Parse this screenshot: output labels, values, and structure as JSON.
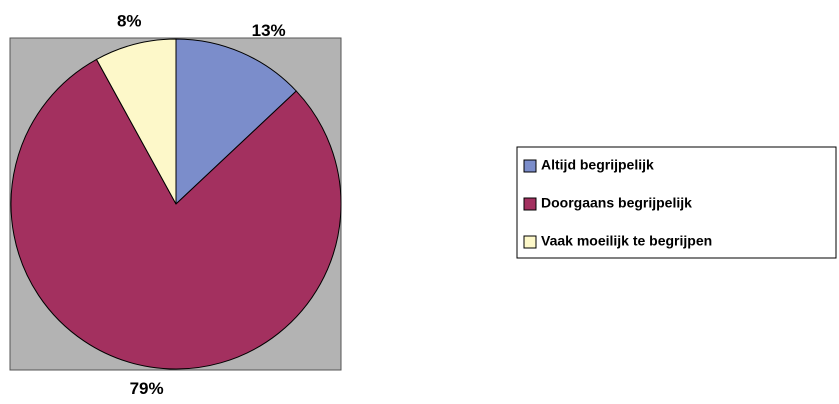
{
  "chart_data": {
    "type": "pie",
    "categories": [
      "Altijd begrijpelijk",
      "Doorgaans begrijpelijk",
      "Vaak moeilijk te begrijpen"
    ],
    "values": [
      13,
      79,
      8
    ],
    "value_labels": [
      "13%",
      "79%",
      "8%"
    ],
    "colors": [
      "#7b8dcb",
      "#a3305f",
      "#fdf8c9"
    ],
    "legend": "right"
  }
}
